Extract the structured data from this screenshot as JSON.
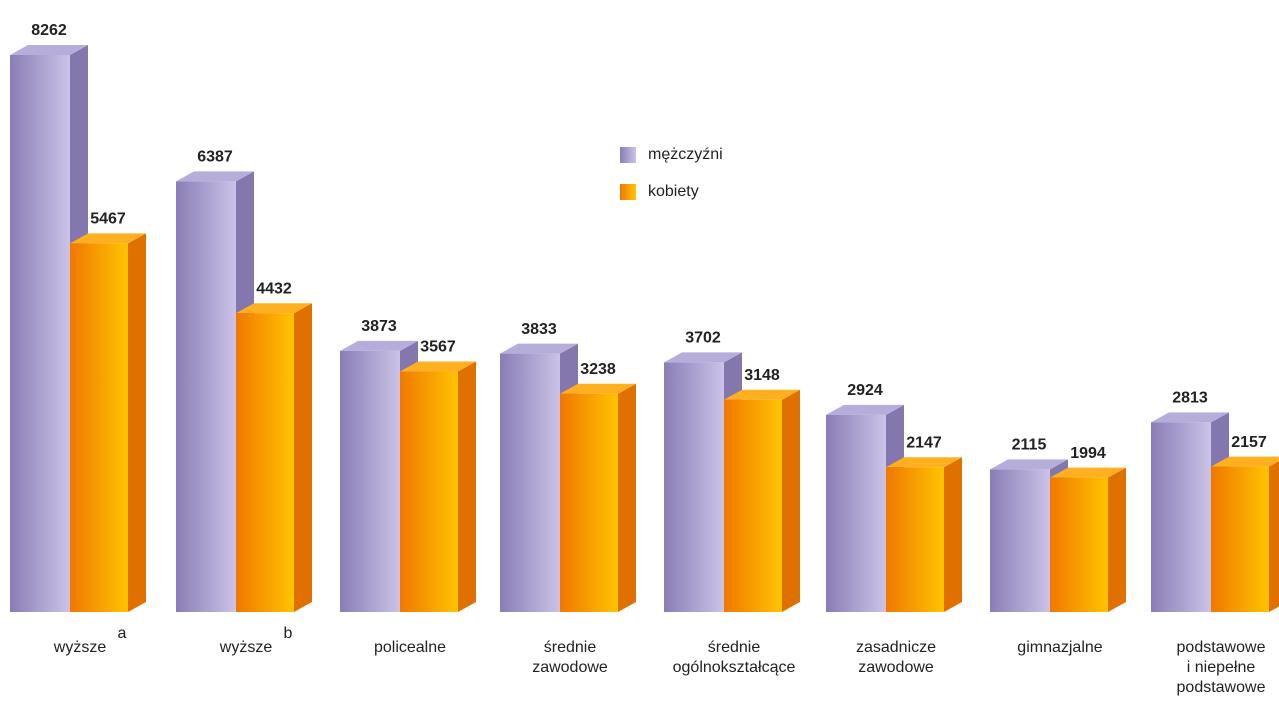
{
  "chart_data": {
    "type": "bar3d",
    "categories": [
      [
        "wyższe"
      ],
      [
        "wyższe"
      ],
      [
        "policealne"
      ],
      [
        "średnie",
        "zawodowe"
      ],
      [
        "średnie",
        "ogólnokształcące"
      ],
      [
        "zasadnicze",
        "zawodowe"
      ],
      [
        "gimnazjalne"
      ],
      [
        "podstawowe",
        "i niepełne",
        "podstawowe"
      ]
    ],
    "category_notes": [
      "a",
      "b",
      null,
      null,
      null,
      null,
      null,
      null
    ],
    "series": [
      {
        "name": "mężczyźni",
        "color": "#9b8fc6",
        "values": [
          8262,
          6387,
          3873,
          3833,
          3702,
          2924,
          2115,
          2813
        ]
      },
      {
        "name": "kobiety",
        "color": "#ff9900",
        "values": [
          5467,
          4432,
          3567,
          3238,
          3148,
          2147,
          1994,
          2157
        ]
      }
    ],
    "legend": "top-center"
  }
}
